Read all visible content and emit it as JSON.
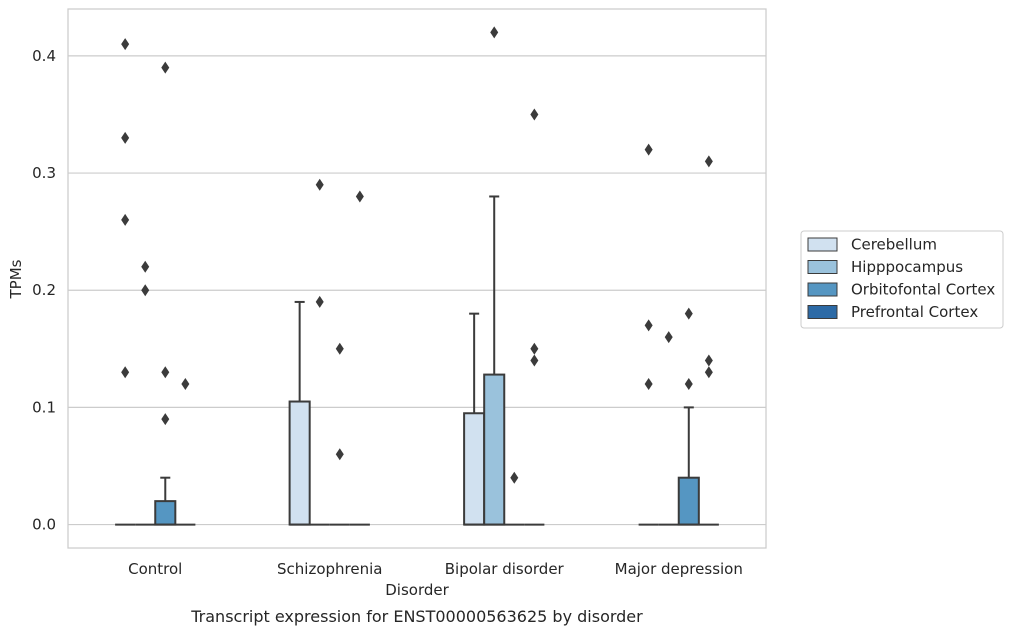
{
  "chart_data": {
    "type": "box",
    "title": "Transcript expression for ENST00000563625 by disorder",
    "xlabel": "Disorder",
    "ylabel": "TPMs",
    "ylim": [
      -0.02,
      0.44
    ],
    "yticks": [
      0.0,
      0.1,
      0.2,
      0.3,
      0.4
    ],
    "ytick_labels": [
      "0.0",
      "0.1",
      "0.2",
      "0.3",
      "0.4"
    ],
    "grid": "horizontal",
    "legend_position": "right",
    "categories": [
      "Control",
      "Schizophrenia",
      "Bipolar disorder",
      "Major depression"
    ],
    "series": [
      {
        "name": "Cerebellum",
        "color": "#d1e1f0",
        "boxes": [
          {
            "q1": 0,
            "median": 0,
            "q3": 0,
            "whislo": 0,
            "whishi": 0,
            "fliers": [
              0.41,
              0.33,
              0.26,
              0.13
            ]
          },
          {
            "q1": 0,
            "median": 0,
            "q3": 0.105,
            "whislo": 0,
            "whishi": 0.19,
            "fliers": []
          },
          {
            "q1": 0,
            "median": 0,
            "q3": 0.095,
            "whislo": 0,
            "whishi": 0.18,
            "fliers": []
          },
          {
            "q1": 0,
            "median": 0,
            "q3": 0,
            "whislo": 0,
            "whishi": 0,
            "fliers": [
              0.32,
              0.17,
              0.12
            ]
          }
        ]
      },
      {
        "name": "Hipppocampus",
        "color": "#9ac2dc",
        "boxes": [
          {
            "q1": 0,
            "median": 0,
            "q3": 0,
            "whislo": 0,
            "whishi": 0,
            "fliers": [
              0.22,
              0.2
            ]
          },
          {
            "q1": 0,
            "median": 0,
            "q3": 0,
            "whislo": 0,
            "whishi": 0,
            "fliers": [
              0.29,
              0.19
            ]
          },
          {
            "q1": 0,
            "median": 0,
            "q3": 0.128,
            "whislo": 0,
            "whishi": 0.28,
            "fliers": [
              0.42
            ]
          },
          {
            "q1": 0,
            "median": 0,
            "q3": 0,
            "whislo": 0,
            "whishi": 0,
            "fliers": [
              0.16
            ]
          }
        ]
      },
      {
        "name": "Orbitofontal Cortex",
        "color": "#5596c2",
        "boxes": [
          {
            "q1": 0,
            "median": 0,
            "q3": 0.02,
            "whislo": 0,
            "whishi": 0.04,
            "fliers": [
              0.39,
              0.13,
              0.09
            ]
          },
          {
            "q1": 0,
            "median": 0,
            "q3": 0,
            "whislo": 0,
            "whishi": 0,
            "fliers": [
              0.15,
              0.06
            ]
          },
          {
            "q1": 0,
            "median": 0,
            "q3": 0,
            "whislo": 0,
            "whishi": 0,
            "fliers": [
              0.04
            ]
          },
          {
            "q1": 0,
            "median": 0,
            "q3": 0.04,
            "whislo": 0,
            "whishi": 0.1,
            "fliers": [
              0.18,
              0.12
            ]
          }
        ]
      },
      {
        "name": "Prefrontal Cortex",
        "color": "#2c6aa6",
        "boxes": [
          {
            "q1": 0,
            "median": 0,
            "q3": 0,
            "whislo": 0,
            "whishi": 0,
            "fliers": [
              0.12
            ]
          },
          {
            "q1": 0,
            "median": 0,
            "q3": 0,
            "whislo": 0,
            "whishi": 0,
            "fliers": [
              0.28
            ]
          },
          {
            "q1": 0,
            "median": 0,
            "q3": 0,
            "whislo": 0,
            "whishi": 0,
            "fliers": [
              0.35,
              0.15,
              0.14
            ]
          },
          {
            "q1": 0,
            "median": 0,
            "q3": 0,
            "whislo": 0,
            "whishi": 0,
            "fliers": [
              0.31,
              0.14,
              0.13
            ]
          }
        ]
      }
    ]
  }
}
